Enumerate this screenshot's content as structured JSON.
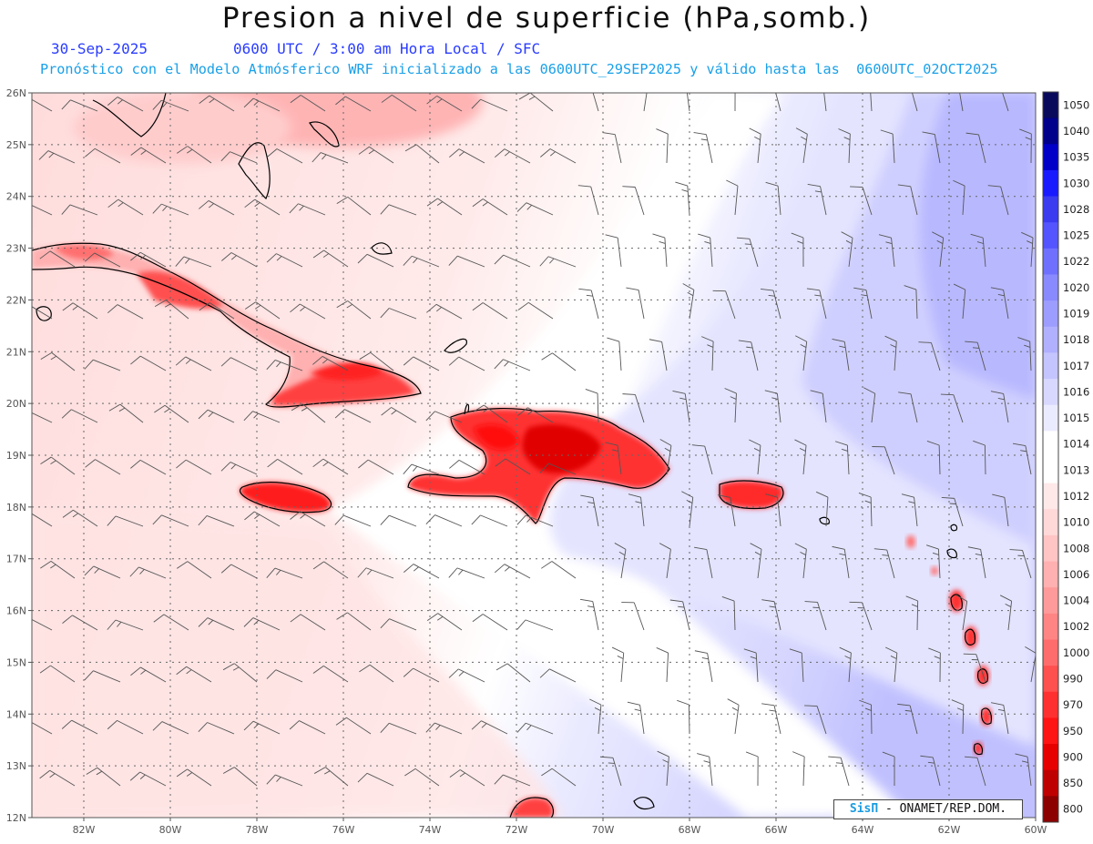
{
  "header": {
    "title": "Presion a nivel de superficie (hPa,somb.)",
    "date": "30-Sep-2025",
    "time_info": "0600 UTC / 3:00 am Hora Local / SFC",
    "subtitle": "Pronóstico con el Modelo Atmósferico WRF inicializado a las 0600UTC_29SEP2025 y válido hasta las  0600UTC_02OCT2025"
  },
  "map": {
    "lat_labels": [
      "26N",
      "25N",
      "24N",
      "23N",
      "22N",
      "21N",
      "20N",
      "19N",
      "18N",
      "17N",
      "16N",
      "15N",
      "14N",
      "13N",
      "12N"
    ],
    "lon_labels": [
      "82W",
      "80W",
      "78W",
      "76W",
      "74W",
      "72W",
      "70W",
      "68W",
      "66W",
      "64W",
      "62W",
      "60W"
    ],
    "lat_range": [
      12,
      26
    ],
    "lon_range": [
      -83.2,
      -60.0
    ],
    "field": "sea level pressure (shaded) and wind barbs"
  },
  "colorbar": {
    "labels": [
      "1050",
      "1040",
      "1035",
      "1030",
      "1028",
      "1025",
      "1022",
      "1020",
      "1019",
      "1018",
      "1017",
      "1016",
      "1015",
      "1014",
      "1013",
      "1012",
      "1010",
      "1008",
      "1006",
      "1004",
      "1002",
      "1000",
      "990",
      "970",
      "950",
      "900",
      "850",
      "800"
    ],
    "colors": [
      "#0a0a5c",
      "#00008b",
      "#0000c8",
      "#1a1aff",
      "#3b3bf0",
      "#5555ff",
      "#7070ff",
      "#8a8aff",
      "#9d9dff",
      "#b0b0ff",
      "#c4c4ff",
      "#d8d8ff",
      "#ebebff",
      "#ffffff",
      "#ffffff",
      "#ffe8e8",
      "#ffd8d8",
      "#ffc4c4",
      "#ffb0b0",
      "#ff9a9a",
      "#ff8484",
      "#ff6c6c",
      "#ff5050",
      "#ff3030",
      "#ff1414",
      "#e60000",
      "#bf0000",
      "#8c0000"
    ]
  },
  "credit": {
    "brand": "SisΠ",
    "org": "- ONAMET/REP.DOM."
  }
}
